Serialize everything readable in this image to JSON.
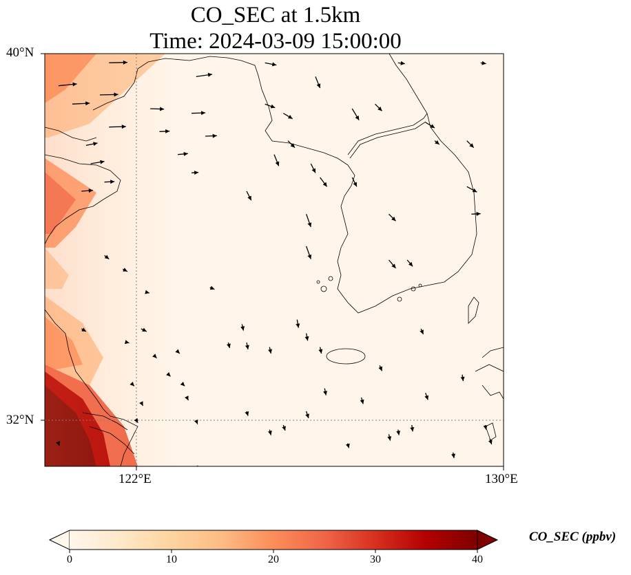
{
  "title": {
    "line1": "CO_SEC at 1.5km",
    "line2": "Time: 2024-03-09 15:00:00"
  },
  "map": {
    "extent": {
      "lon_min": 120,
      "lon_max": 130,
      "lat_min": 31,
      "lat_max": 40
    },
    "gridlines": {
      "lon": 122,
      "lat": 32,
      "style": "dotted",
      "color": "#808080"
    },
    "ticks": {
      "lat": [
        {
          "value": 40,
          "label": "40°N"
        },
        {
          "value": 32,
          "label": "32°N"
        }
      ],
      "lon": [
        {
          "value": 122,
          "label": "122°E"
        },
        {
          "value": 130,
          "label": "130°E"
        }
      ]
    },
    "background_color": "#fff5ea",
    "coastline_color": "#000000"
  },
  "colorbar": {
    "label": "CO_SEC (ppbv)",
    "min": 0,
    "max": 40,
    "ticks": [
      "0",
      "10",
      "20",
      "30",
      "40"
    ],
    "colormap": "OrRd",
    "colors": [
      "#fff7ec",
      "#fee8c8",
      "#fdd49e",
      "#fdbb84",
      "#fc8d59",
      "#ef6548",
      "#d7301f",
      "#b30000",
      "#7f0000"
    ]
  },
  "wind_vectors": [
    [
      121.4,
      39.8,
      0.4,
      0.01
    ],
    [
      121.2,
      39.1,
      0.4,
      0.01
    ],
    [
      120.3,
      39.3,
      0.4,
      0.04
    ],
    [
      120.6,
      38.9,
      0.38,
      0.02
    ],
    [
      121.4,
      38.4,
      0.37,
      0.01
    ],
    [
      120.9,
      38.0,
      0.25,
      0.05
    ],
    [
      121.0,
      37.6,
      0.3,
      0.05
    ],
    [
      120.8,
      37.0,
      0.25,
      0.02
    ],
    [
      121.3,
      37.2,
      0.22,
      0.01
    ],
    [
      122.3,
      38.8,
      0.3,
      -0.01
    ],
    [
      122.5,
      38.3,
      0.22,
      0.01
    ],
    [
      123.3,
      39.5,
      0.35,
      0.05
    ],
    [
      123.2,
      38.7,
      0.3,
      0.01
    ],
    [
      123.5,
      38.2,
      0.25,
      0.01
    ],
    [
      122.9,
      37.8,
      0.22,
      0.02
    ],
    [
      123.2,
      37.4,
      0.15,
      0.01
    ],
    [
      124.8,
      39.8,
      0.25,
      -0.05
    ],
    [
      124.8,
      38.9,
      0.22,
      -0.08
    ],
    [
      125.2,
      38.7,
      0.2,
      -0.12
    ],
    [
      125.3,
      38.1,
      0.15,
      -0.15
    ],
    [
      126.0,
      37.3,
      0.15,
      -0.2
    ],
    [
      125.9,
      39.5,
      0.1,
      -0.25
    ],
    [
      126.7,
      38.8,
      0.15,
      -0.25
    ],
    [
      126.7,
      37.3,
      0.1,
      -0.2
    ],
    [
      125.8,
      37.6,
      0.1,
      -0.2
    ],
    [
      125.0,
      37.8,
      0.1,
      -0.25
    ],
    [
      124.4,
      37.0,
      0.1,
      -0.2
    ],
    [
      125.7,
      36.5,
      0.1,
      -0.28
    ],
    [
      125.7,
      35.8,
      0.1,
      -0.28
    ],
    [
      127.2,
      38.9,
      0.15,
      -0.15
    ],
    [
      127.7,
      39.8,
      0.15,
      -0.02
    ],
    [
      128.3,
      38.5,
      0.2,
      -0.12
    ],
    [
      129.2,
      38.1,
      0.15,
      -0.15
    ],
    [
      129.2,
      37.1,
      0.22,
      -0.12
    ],
    [
      129.3,
      36.5,
      0.2,
      0.01
    ],
    [
      127.5,
      36.5,
      0.15,
      -0.15
    ],
    [
      128.5,
      38.1,
      0.1,
      -0.08
    ],
    [
      129.5,
      39.8,
      0.12,
      -0.02
    ],
    [
      121.3,
      35.6,
      0.1,
      -0.08
    ],
    [
      121.7,
      35.3,
      0.1,
      -0.05
    ],
    [
      122.1,
      34.0,
      0.12,
      -0.06
    ],
    [
      120.8,
      34.0,
      0.1,
      -0.06
    ],
    [
      123.6,
      34.9,
      0.1,
      -0.04
    ],
    [
      122.2,
      34.8,
      0.08,
      -0.02
    ],
    [
      124.3,
      34.1,
      0.03,
      -0.14
    ],
    [
      124.4,
      33.7,
      0.03,
      -0.15
    ],
    [
      124.9,
      33.6,
      0.03,
      -0.14
    ],
    [
      124.0,
      33.7,
      0.03,
      -0.12
    ],
    [
      125.5,
      34.2,
      0.03,
      -0.18
    ],
    [
      125.7,
      33.9,
      0.03,
      -0.16
    ],
    [
      126.0,
      33.6,
      0.03,
      -0.14
    ],
    [
      127.3,
      33.2,
      0.05,
      -0.12
    ],
    [
      127.5,
      35.5,
      0.15,
      -0.18
    ],
    [
      127.9,
      35.5,
      0.12,
      -0.14
    ],
    [
      128.2,
      34.0,
      0.05,
      -0.12
    ],
    [
      129.1,
      33.0,
      0.02,
      -0.14
    ],
    [
      128.3,
      32.6,
      0.05,
      -0.15
    ],
    [
      126.9,
      32.5,
      0.04,
      -0.14
    ],
    [
      125.7,
      32.2,
      0.05,
      -0.15
    ],
    [
      125.2,
      31.9,
      0.04,
      -0.12
    ],
    [
      123.3,
      32.0,
      0.03,
      -0.08
    ],
    [
      122.1,
      32.4,
      0.04,
      -0.08
    ],
    [
      123.3,
      31.0,
      0.03,
      -0.08
    ],
    [
      127.5,
      31.7,
      0.03,
      -0.14
    ],
    [
      127.7,
      31.8,
      0.02,
      -0.12
    ],
    [
      128.0,
      31.9,
      0.02,
      -0.14
    ],
    [
      128.9,
      31.3,
      0.02,
      -0.12
    ],
    [
      126.6,
      31.5,
      0.03,
      -0.1
    ],
    [
      126.1,
      32.7,
      0.03,
      -0.15
    ],
    [
      121.9,
      32.8,
      0.05,
      -0.05
    ],
    [
      122.7,
      33.0,
      0.04,
      -0.04
    ],
    [
      123.0,
      32.8,
      0.05,
      -0.05
    ],
    [
      122.4,
      33.4,
      0.04,
      -0.04
    ],
    [
      122.9,
      33.5,
      0.04,
      -0.04
    ],
    [
      123.1,
      32.5,
      0.03,
      -0.06
    ],
    [
      121.8,
      33.7,
      0.04,
      -0.01
    ],
    [
      122.0,
      32.0,
      0.03,
      -0.05
    ],
    [
      120.3,
      31.5,
      0.02,
      -0.05
    ],
    [
      124.4,
      32.2,
      0.03,
      -0.1
    ],
    [
      124.9,
      31.8,
      0.03,
      -0.12
    ],
    [
      129.6,
      31.9,
      0.02,
      -0.1
    ],
    [
      129.7,
      31.6,
      0.04,
      -0.12
    ]
  ]
}
